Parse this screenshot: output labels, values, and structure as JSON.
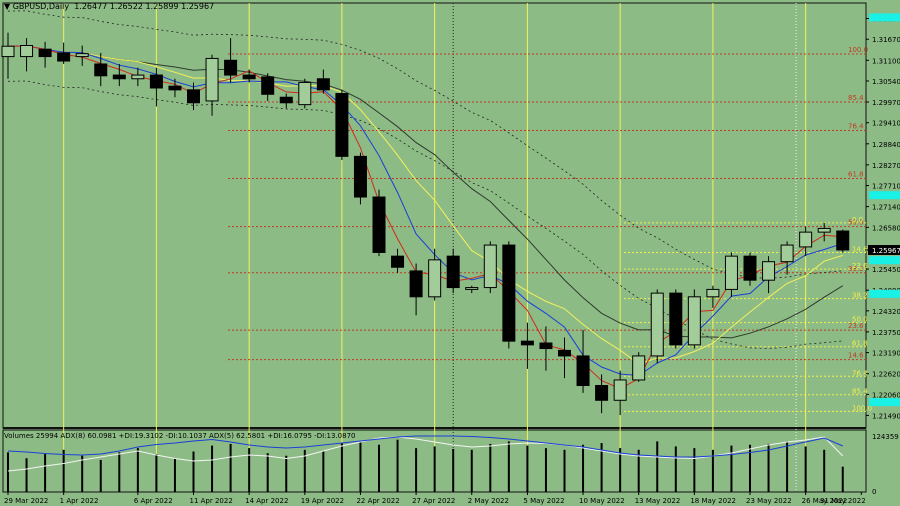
{
  "header": {
    "symbol": "GBPUSD,Daily",
    "ohlc": "1.26477 1.26522 1.25899 1.25967"
  },
  "volume_header": "Volumes 25994  ADX(8) 60.0981 +DI:19.3102 -DI:10.1037  ADX(5) 62.5801 +DI:16.0795 -DI:13.0870",
  "colors": {
    "background": "#8dbb86",
    "bull_body": "#a3cc9b",
    "bear_body": "#000000",
    "fib_red": "#c03a22",
    "fib_yellow": "#f2f04a",
    "sma_yellow": "#f4f05a",
    "ema_red": "#d02a1a",
    "ema_blue": "#1a3fd8",
    "ma_dark": "#2e3a2e",
    "envelope": "#222222",
    "price_marker": "#000000",
    "cyan_marker": "#19f0e6"
  },
  "chart_data": {
    "type": "candlestick",
    "ylim": [
      1.2115,
      1.3265
    ],
    "y_ticks": [
      "1.32230",
      "1.31670",
      "1.31100",
      "1.30540",
      "1.29970",
      "1.29410",
      "1.28840",
      "1.28270",
      "1.27710",
      "1.27140",
      "1.26580",
      "1.25967",
      "1.25450",
      "1.24880",
      "1.24320",
      "1.23750",
      "1.23190",
      "1.22620",
      "1.22060",
      "1.21490"
    ],
    "y_tick_values": [
      1.3223,
      1.3167,
      1.311,
      1.3054,
      1.2997,
      1.2941,
      1.2884,
      1.2827,
      1.2771,
      1.2714,
      1.2658,
      1.25967,
      1.2545,
      1.2488,
      1.2432,
      1.2375,
      1.2319,
      1.2262,
      1.2206,
      1.2149
    ],
    "current_price": "1.25967",
    "current_price_value": 1.25967,
    "cyan_marker_values": [
      1.3226,
      1.2745,
      1.2569,
      1.2478,
      1.2185
    ],
    "x_labels": [
      "29 Mar 2022",
      "1 Apr 2022",
      "6 Apr 2022",
      "11 Apr 2022",
      "14 Apr 2022",
      "19 Apr 2022",
      "22 Apr 2022",
      "27 Apr 2022",
      "2 May 2022",
      "5 May 2022",
      "10 May 2022",
      "13 May 2022",
      "18 May 2022",
      "23 May 2022",
      "26 May 2022",
      "31 May 2022"
    ],
    "x_label_index": [
      0,
      3,
      7,
      10,
      13,
      16,
      19,
      22,
      25,
      28,
      31,
      34,
      37,
      40,
      43,
      46
    ],
    "candles": [
      {
        "o": 1.312,
        "h": 1.3185,
        "l": 1.306,
        "c": 1.3148
      },
      {
        "o": 1.312,
        "h": 1.317,
        "l": 1.308,
        "c": 1.315
      },
      {
        "o": 1.314,
        "h": 1.316,
        "l": 1.309,
        "c": 1.312
      },
      {
        "o": 1.313,
        "h": 1.3158,
        "l": 1.31,
        "c": 1.3108
      },
      {
        "o": 1.312,
        "h": 1.315,
        "l": 1.3095,
        "c": 1.3128
      },
      {
        "o": 1.31,
        "h": 1.313,
        "l": 1.304,
        "c": 1.3068
      },
      {
        "o": 1.307,
        "h": 1.31,
        "l": 1.304,
        "c": 1.306
      },
      {
        "o": 1.306,
        "h": 1.309,
        "l": 1.304,
        "c": 1.307
      },
      {
        "o": 1.307,
        "h": 1.309,
        "l": 1.2985,
        "c": 1.3035
      },
      {
        "o": 1.304,
        "h": 1.306,
        "l": 1.301,
        "c": 1.303
      },
      {
        "o": 1.303,
        "h": 1.305,
        "l": 1.2975,
        "c": 1.2995
      },
      {
        "o": 1.3,
        "h": 1.3125,
        "l": 1.296,
        "c": 1.3115
      },
      {
        "o": 1.311,
        "h": 1.317,
        "l": 1.305,
        "c": 1.307
      },
      {
        "o": 1.307,
        "h": 1.3085,
        "l": 1.305,
        "c": 1.306
      },
      {
        "o": 1.3065,
        "h": 1.3075,
        "l": 1.3,
        "c": 1.3018
      },
      {
        "o": 1.301,
        "h": 1.302,
        "l": 1.298,
        "c": 1.2995
      },
      {
        "o": 1.299,
        "h": 1.306,
        "l": 1.298,
        "c": 1.305
      },
      {
        "o": 1.306,
        "h": 1.3085,
        "l": 1.302,
        "c": 1.303
      },
      {
        "o": 1.302,
        "h": 1.303,
        "l": 1.284,
        "c": 1.285
      },
      {
        "o": 1.285,
        "h": 1.286,
        "l": 1.272,
        "c": 1.274
      },
      {
        "o": 1.274,
        "h": 1.276,
        "l": 1.258,
        "c": 1.259
      },
      {
        "o": 1.258,
        "h": 1.26,
        "l": 1.2535,
        "c": 1.255
      },
      {
        "o": 1.254,
        "h": 1.256,
        "l": 1.242,
        "c": 1.247
      },
      {
        "o": 1.247,
        "h": 1.26,
        "l": 1.246,
        "c": 1.257
      },
      {
        "o": 1.258,
        "h": 1.26,
        "l": 1.248,
        "c": 1.2495
      },
      {
        "o": 1.249,
        "h": 1.25,
        "l": 1.248,
        "c": 1.2495
      },
      {
        "o": 1.2495,
        "h": 1.262,
        "l": 1.248,
        "c": 1.261
      },
      {
        "o": 1.261,
        "h": 1.262,
        "l": 1.233,
        "c": 1.235
      },
      {
        "o": 1.235,
        "h": 1.24,
        "l": 1.2275,
        "c": 1.234
      },
      {
        "o": 1.2345,
        "h": 1.239,
        "l": 1.227,
        "c": 1.233
      },
      {
        "o": 1.2325,
        "h": 1.236,
        "l": 1.225,
        "c": 1.231
      },
      {
        "o": 1.231,
        "h": 1.238,
        "l": 1.221,
        "c": 1.223
      },
      {
        "o": 1.223,
        "h": 1.226,
        "l": 1.2155,
        "c": 1.219
      },
      {
        "o": 1.219,
        "h": 1.227,
        "l": 1.215,
        "c": 1.2245
      },
      {
        "o": 1.2245,
        "h": 1.232,
        "l": 1.224,
        "c": 1.231
      },
      {
        "o": 1.231,
        "h": 1.249,
        "l": 1.229,
        "c": 1.248
      },
      {
        "o": 1.248,
        "h": 1.249,
        "l": 1.233,
        "c": 1.234
      },
      {
        "o": 1.234,
        "h": 1.249,
        "l": 1.233,
        "c": 1.247
      },
      {
        "o": 1.247,
        "h": 1.25,
        "l": 1.244,
        "c": 1.249
      },
      {
        "o": 1.249,
        "h": 1.259,
        "l": 1.247,
        "c": 1.258
      },
      {
        "o": 1.258,
        "h": 1.259,
        "l": 1.25,
        "c": 1.2515
      },
      {
        "o": 1.2515,
        "h": 1.258,
        "l": 1.248,
        "c": 1.2565
      },
      {
        "o": 1.2565,
        "h": 1.262,
        "l": 1.253,
        "c": 1.261
      },
      {
        "o": 1.2605,
        "h": 1.266,
        "l": 1.258,
        "c": 1.2645
      },
      {
        "o": 1.2645,
        "h": 1.267,
        "l": 1.262,
        "c": 1.2655
      },
      {
        "o": 1.2648,
        "h": 1.2652,
        "l": 1.259,
        "c": 1.25967
      }
    ],
    "fib_levels_red": [
      {
        "label": "100.0",
        "price": 1.3127
      },
      {
        "label": "85.4",
        "price": 1.2997
      },
      {
        "label": "76.4",
        "price": 1.292
      },
      {
        "label": "61.8",
        "price": 1.279
      },
      {
        "label": "50.0",
        "price": 1.266
      },
      {
        "label": "38.2",
        "price": 1.2535
      },
      {
        "label": "23.6",
        "price": 1.238
      },
      {
        "label": "14.6",
        "price": 1.23
      }
    ],
    "fib_levels_yellow": [
      {
        "label": "0.0",
        "price": 1.267
      },
      {
        "label": "14.6",
        "price": 1.259
      },
      {
        "label": "23.6",
        "price": 1.2545
      },
      {
        "label": "38.2",
        "price": 1.2465
      },
      {
        "label": "50.0",
        "price": 1.24
      },
      {
        "label": "61.8",
        "price": 1.2335
      },
      {
        "label": "76.4",
        "price": 1.2255
      },
      {
        "label": "85.4",
        "price": 1.2205
      },
      {
        "label": "100.0",
        "price": 1.216
      }
    ],
    "series": [],
    "volume": {
      "max_label": "124359",
      "min_label": "0",
      "values": [
        47,
        40,
        45,
        50,
        43,
        38,
        47,
        52,
        45,
        40,
        48,
        55,
        57,
        52,
        46,
        43,
        50,
        48,
        58,
        60,
        56,
        62,
        52,
        54,
        51,
        50,
        57,
        60,
        55,
        52,
        50,
        56,
        58,
        52,
        50,
        60,
        54,
        52,
        50,
        55,
        56,
        57,
        60,
        54,
        50,
        30
      ],
      "adx_blue": [
        0.7,
        0.68,
        0.65,
        0.63,
        0.62,
        0.64,
        0.7,
        0.78,
        0.83,
        0.86,
        0.9,
        0.93,
        0.88,
        0.82,
        0.78,
        0.76,
        0.78,
        0.82,
        0.86,
        0.9,
        0.94,
        0.98,
        1.0,
        1.0,
        1.0,
        0.99,
        0.97,
        0.94,
        0.9,
        0.86,
        0.82,
        0.78,
        0.72,
        0.66,
        0.62,
        0.6,
        0.58,
        0.58,
        0.6,
        0.63,
        0.67,
        0.72,
        0.8,
        0.88,
        0.96,
        0.8
      ],
      "adx_white": [
        0.3,
        0.34,
        0.4,
        0.45,
        0.52,
        0.58,
        0.64,
        0.7,
        0.62,
        0.55,
        0.5,
        0.52,
        0.58,
        0.62,
        0.6,
        0.55,
        0.6,
        0.7,
        0.8,
        0.88,
        0.96,
        0.98,
        0.94,
        0.88,
        0.82,
        0.78,
        0.8,
        0.84,
        0.86,
        0.85,
        0.82,
        0.76,
        0.7,
        0.64,
        0.6,
        0.58,
        0.56,
        0.55,
        0.6,
        0.66,
        0.74,
        0.82,
        0.88,
        0.92,
        0.98,
        0.6
      ]
    }
  }
}
